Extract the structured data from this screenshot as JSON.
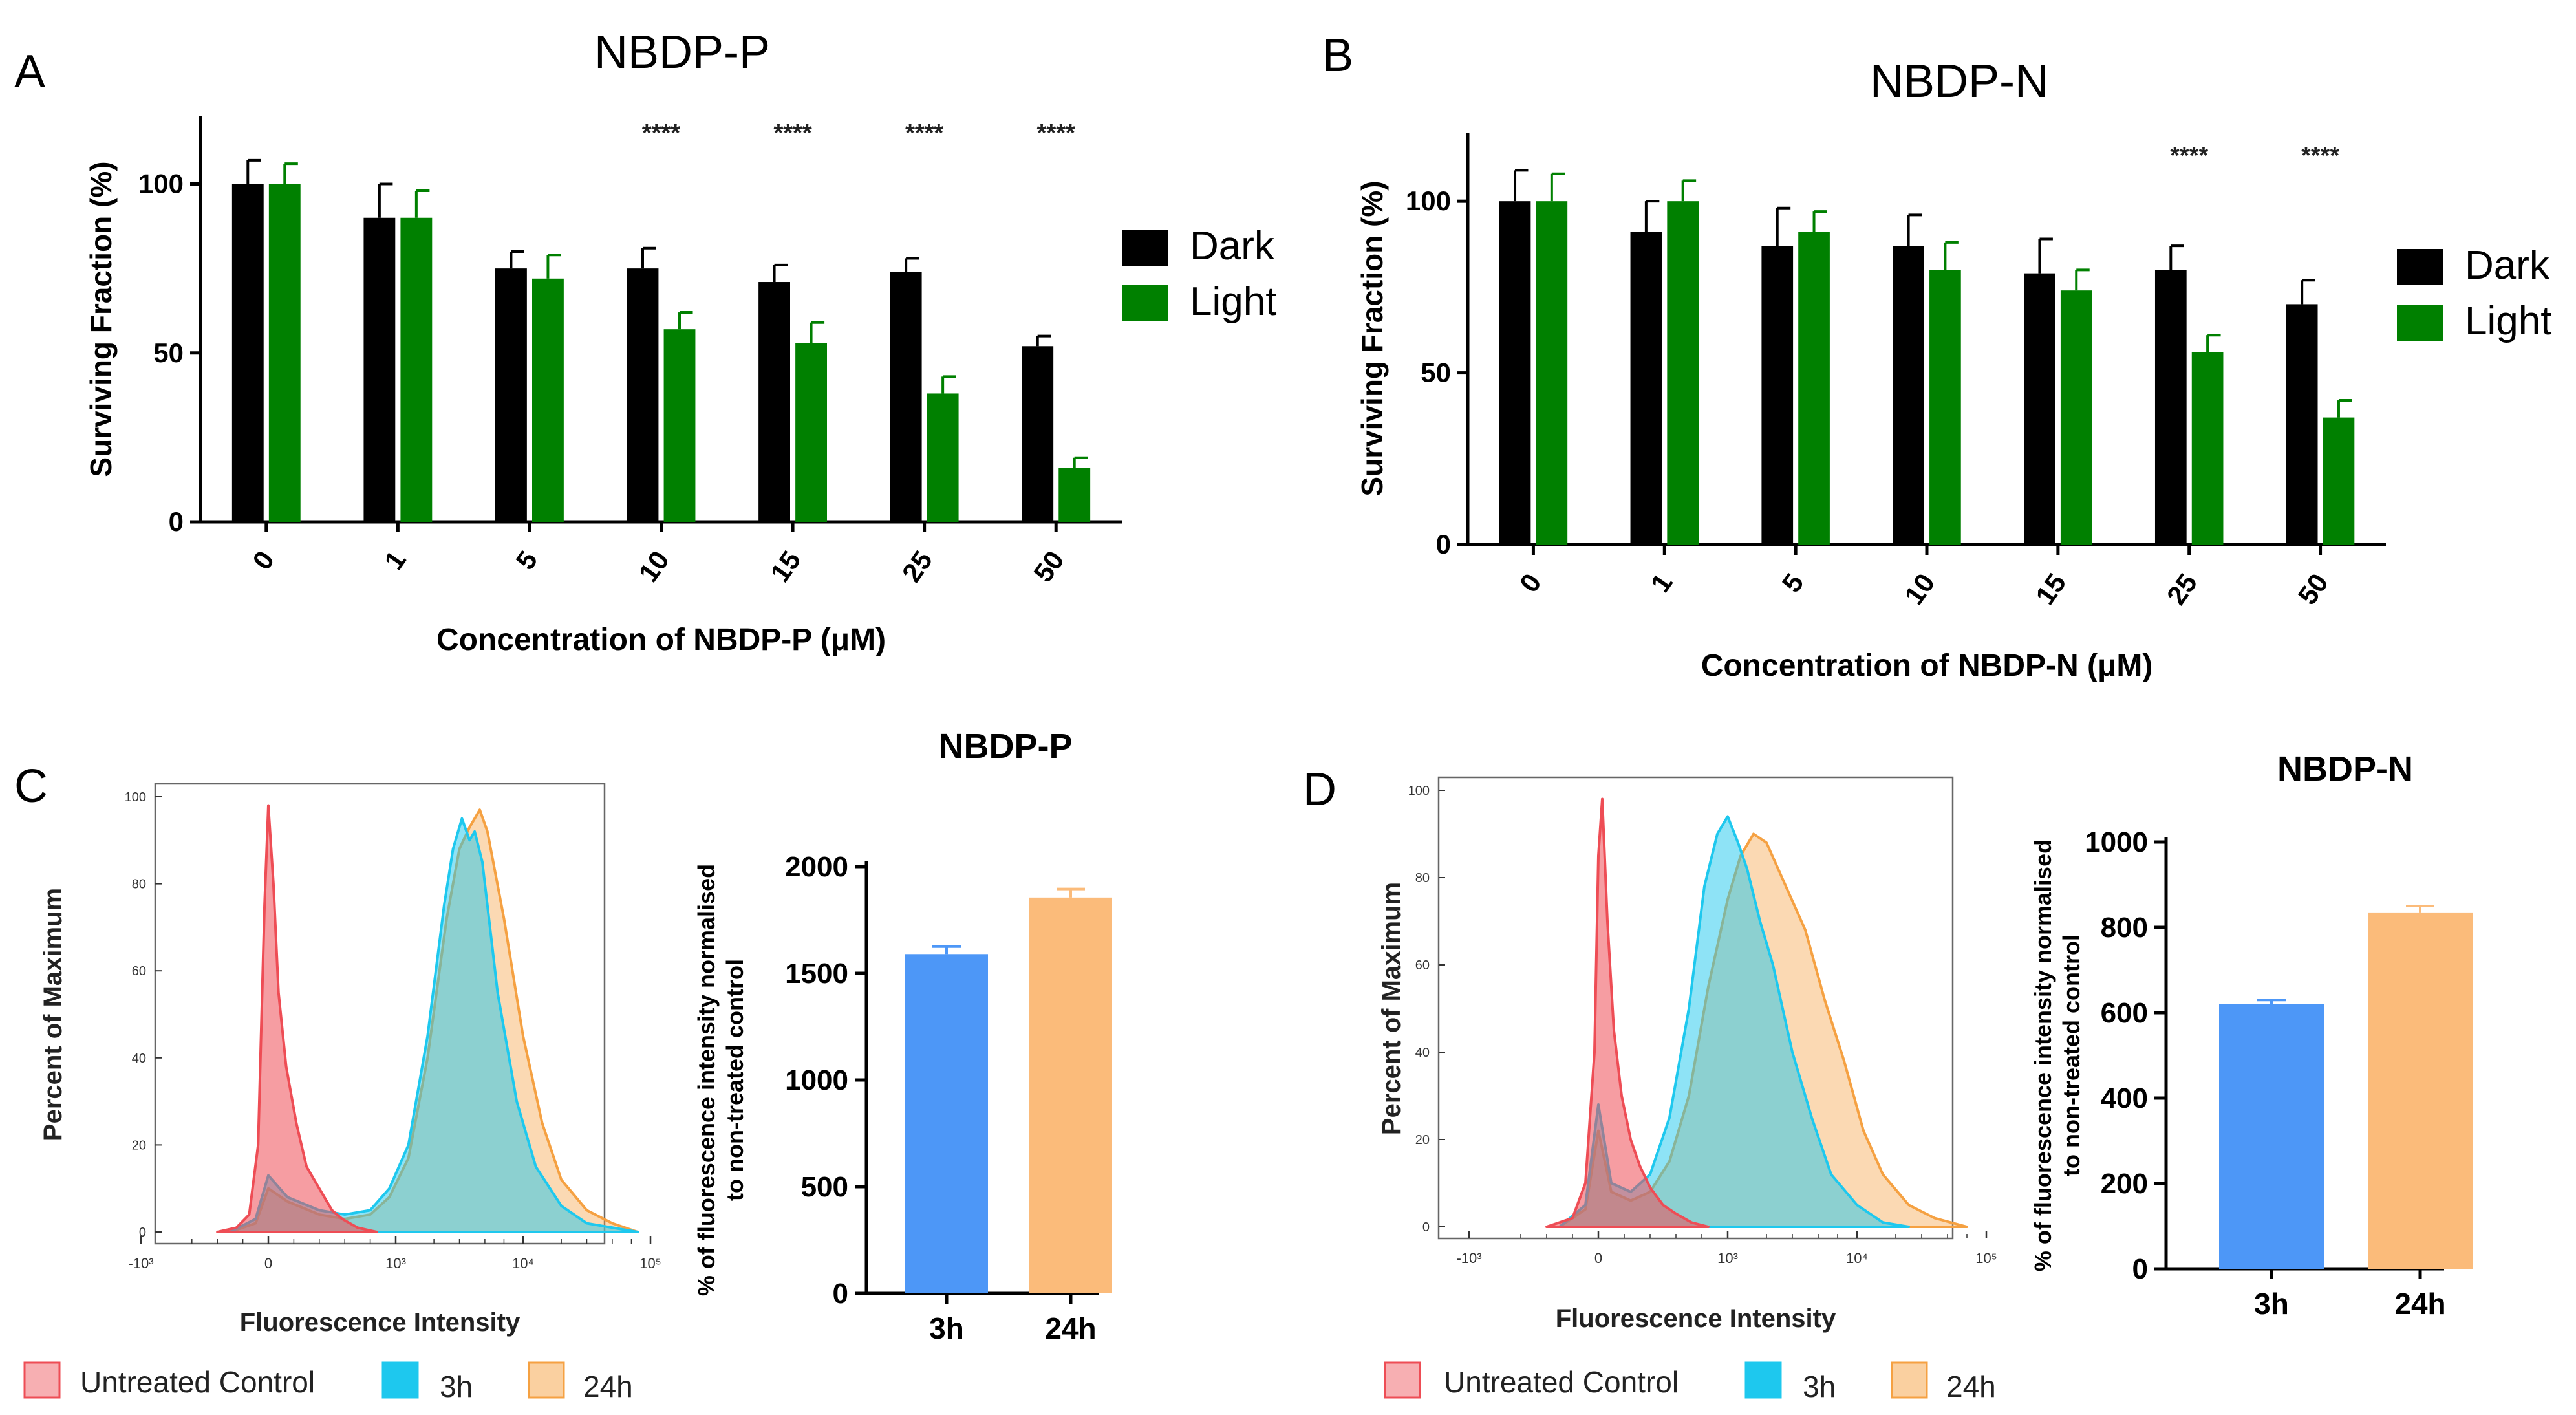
{
  "panels": [
    {
      "id": "A",
      "letter": "A"
    },
    {
      "id": "B",
      "letter": "B"
    },
    {
      "id": "C",
      "letter": "C"
    },
    {
      "id": "D",
      "letter": "D"
    }
  ],
  "colors": {
    "dark": "#000000",
    "light": "#008000",
    "untreated": "#ee4d55",
    "h3": "#1ec8ee",
    "h24": "#f5a142",
    "bar3h": "#4d97f7",
    "bar24h": "#fbbb7a"
  },
  "histogram_labels": {
    "xlabel": "Fluorescence Intensity",
    "ylabel": "Percent of Maximum",
    "xticks": [
      "-10³",
      "0",
      "10³",
      "10⁴",
      "10⁵"
    ],
    "yticks": [
      "0",
      "20",
      "40",
      "60",
      "80",
      "100"
    ]
  },
  "histogram_legend": [
    "Untreated Control",
    "3h",
    "24h"
  ],
  "chart_data": [
    {
      "panel": "A",
      "type": "bar",
      "title": "NBDP-P",
      "xlabel": "Concentration of NBDP-P (μM)",
      "ylabel": "Surviving Fraction (%)",
      "ylim": [
        0,
        120
      ],
      "yticks": [
        0,
        50,
        100
      ],
      "categories": [
        "0",
        "1",
        "5",
        "10",
        "15",
        "25",
        "50"
      ],
      "series": [
        {
          "name": "Dark",
          "values": [
            100,
            90,
            75,
            75,
            71,
            74,
            52
          ],
          "errors": [
            7,
            10,
            5,
            6,
            5,
            4,
            3
          ]
        },
        {
          "name": "Light",
          "values": [
            100,
            90,
            72,
            57,
            53,
            38,
            16
          ],
          "errors": [
            6,
            8,
            7,
            5,
            6,
            5,
            3
          ]
        }
      ],
      "significance": [
        "",
        "",
        "",
        "****",
        "****",
        "****",
        "****"
      ]
    },
    {
      "panel": "B",
      "type": "bar",
      "title": "NBDP-N",
      "xlabel": "Concentration of NBDP-N (μM)",
      "ylabel": "Surviving Fraction (%)",
      "ylim": [
        0,
        120
      ],
      "yticks": [
        0,
        50,
        100
      ],
      "categories": [
        "0",
        "1",
        "5",
        "10",
        "15",
        "25",
        "50"
      ],
      "series": [
        {
          "name": "Dark",
          "values": [
            100,
            91,
            87,
            87,
            79,
            80,
            70
          ],
          "errors": [
            9,
            9,
            11,
            9,
            10,
            7,
            7
          ]
        },
        {
          "name": "Light",
          "values": [
            100,
            100,
            91,
            80,
            74,
            56,
            37
          ],
          "errors": [
            8,
            6,
            6,
            8,
            6,
            5,
            5
          ]
        }
      ],
      "significance": [
        "",
        "",
        "",
        "",
        "",
        "****",
        "****"
      ]
    },
    {
      "panel": "C",
      "type": "area",
      "subtype": "histogram",
      "xlabel": "Fluorescence Intensity",
      "ylabel": "Percent of Maximum",
      "xscale": "biexponential",
      "ylim": [
        0,
        100
      ],
      "series": [
        {
          "name": "Untreated Control",
          "x": [
            -0.4,
            -0.25,
            -0.15,
            -0.08,
            -0.03,
            0.0,
            0.04,
            0.08,
            0.14,
            0.22,
            0.3,
            0.4,
            0.5,
            0.58,
            0.7,
            0.85
          ],
          "y": [
            0,
            1,
            4,
            20,
            75,
            98,
            80,
            55,
            38,
            25,
            15,
            10,
            5,
            3,
            1,
            0
          ]
        },
        {
          "name": "3h",
          "x": [
            -0.3,
            -0.1,
            0.0,
            0.15,
            0.4,
            0.6,
            0.8,
            0.95,
            1.1,
            1.25,
            1.38,
            1.45,
            1.52,
            1.58,
            1.62,
            1.68,
            1.8,
            1.95,
            2.1,
            2.3,
            2.5,
            2.7,
            2.9
          ],
          "y": [
            0,
            3,
            13,
            8,
            5,
            4,
            5,
            10,
            20,
            45,
            75,
            88,
            95,
            90,
            92,
            85,
            55,
            30,
            15,
            6,
            2,
            1,
            0
          ]
        },
        {
          "name": "24h",
          "x": [
            -0.3,
            -0.1,
            0.0,
            0.15,
            0.4,
            0.6,
            0.8,
            0.95,
            1.1,
            1.25,
            1.4,
            1.5,
            1.58,
            1.66,
            1.72,
            1.85,
            2.0,
            2.15,
            2.3,
            2.5,
            2.7,
            2.9
          ],
          "y": [
            0,
            2,
            10,
            7,
            4,
            3,
            4,
            8,
            17,
            40,
            72,
            88,
            93,
            97,
            92,
            72,
            45,
            25,
            12,
            5,
            2,
            0
          ]
        }
      ]
    },
    {
      "panel": "C",
      "type": "bar",
      "title": "NBDP-P",
      "ylabel": "% of fluorescence intensity normalised to non-treated control",
      "ylim": [
        0,
        2000
      ],
      "yticks": [
        0,
        500,
        1000,
        1500,
        2000
      ],
      "categories": [
        "3h",
        "24h"
      ],
      "values": [
        1590,
        1855
      ],
      "errors": [
        35,
        40
      ]
    },
    {
      "panel": "D",
      "type": "area",
      "subtype": "histogram",
      "xlabel": "Fluorescence Intensity",
      "ylabel": "Percent of Maximum",
      "xscale": "biexponential",
      "ylim": [
        0,
        100
      ],
      "series": [
        {
          "name": "Untreated Control",
          "x": [
            -0.4,
            -0.2,
            -0.1,
            -0.03,
            0.0,
            0.03,
            0.07,
            0.12,
            0.18,
            0.25,
            0.32,
            0.4,
            0.5,
            0.6,
            0.72,
            0.85
          ],
          "y": [
            0,
            2,
            10,
            40,
            85,
            98,
            70,
            45,
            30,
            20,
            14,
            9,
            5,
            3,
            1,
            0
          ]
        },
        {
          "name": "3h",
          "x": [
            -0.3,
            -0.1,
            0.0,
            0.1,
            0.25,
            0.4,
            0.55,
            0.7,
            0.82,
            0.92,
            1.0,
            1.08,
            1.15,
            1.25,
            1.35,
            1.5,
            1.65,
            1.8,
            2.0,
            2.2,
            2.4
          ],
          "y": [
            0,
            5,
            28,
            10,
            8,
            12,
            25,
            50,
            78,
            90,
            94,
            88,
            82,
            70,
            60,
            40,
            25,
            12,
            5,
            1,
            0
          ]
        },
        {
          "name": "24h",
          "x": [
            -0.3,
            -0.1,
            0.0,
            0.1,
            0.25,
            0.4,
            0.55,
            0.7,
            0.85,
            1.0,
            1.1,
            1.2,
            1.3,
            1.45,
            1.6,
            1.75,
            1.9,
            2.05,
            2.2,
            2.4,
            2.6,
            2.85
          ],
          "y": [
            0,
            4,
            22,
            8,
            6,
            8,
            15,
            30,
            55,
            75,
            85,
            90,
            88,
            78,
            68,
            52,
            38,
            22,
            12,
            5,
            2,
            0
          ]
        }
      ]
    },
    {
      "panel": "D",
      "type": "bar",
      "title": "NBDP-N",
      "ylabel": "% of fluorescence intensity normalised to non-treated control",
      "ylim": [
        0,
        1000
      ],
      "yticks": [
        0,
        200,
        400,
        600,
        800,
        1000
      ],
      "categories": [
        "3h",
        "24h"
      ],
      "values": [
        620,
        835
      ],
      "errors": [
        10,
        15
      ]
    }
  ]
}
